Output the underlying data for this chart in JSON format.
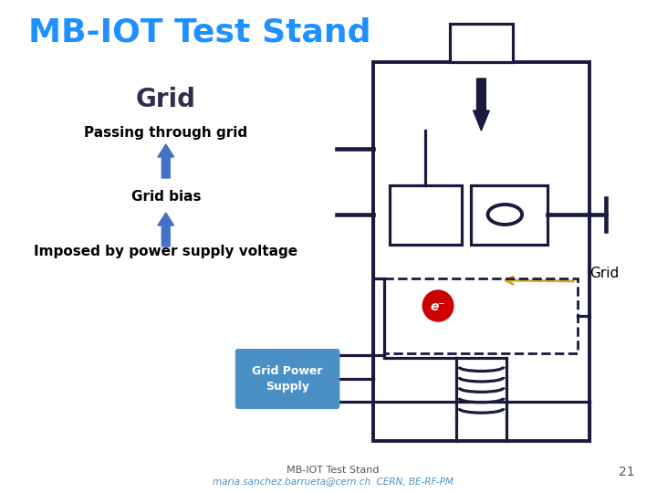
{
  "title": "MB-IOT Test Stand",
  "subtitle": "Grid",
  "label_passing": "Passing through grid",
  "label_bias": "Grid bias",
  "label_imposed": "Imposed by power supply voltage",
  "label_grid": "Grid",
  "label_power": "Grid Power\nSupply",
  "label_e": "e⁻",
  "footer_line1": "MB-IOT Test Stand",
  "footer_line2": "maria.sanchez.barrueta@cern.ch  CERN, BE-RF-PM",
  "footer_page": "21",
  "title_color": "#1E90FF",
  "subtitle_color": "#2d2d4e",
  "diagram_color": "#1a1a3e",
  "arrow_color": "#4472C4",
  "grid_label_arrow_color": "#DAA520",
  "power_supply_color": "#4A90C4",
  "electron_color": "#CC0000",
  "bg_color": "#ffffff",
  "lw": 2.3
}
